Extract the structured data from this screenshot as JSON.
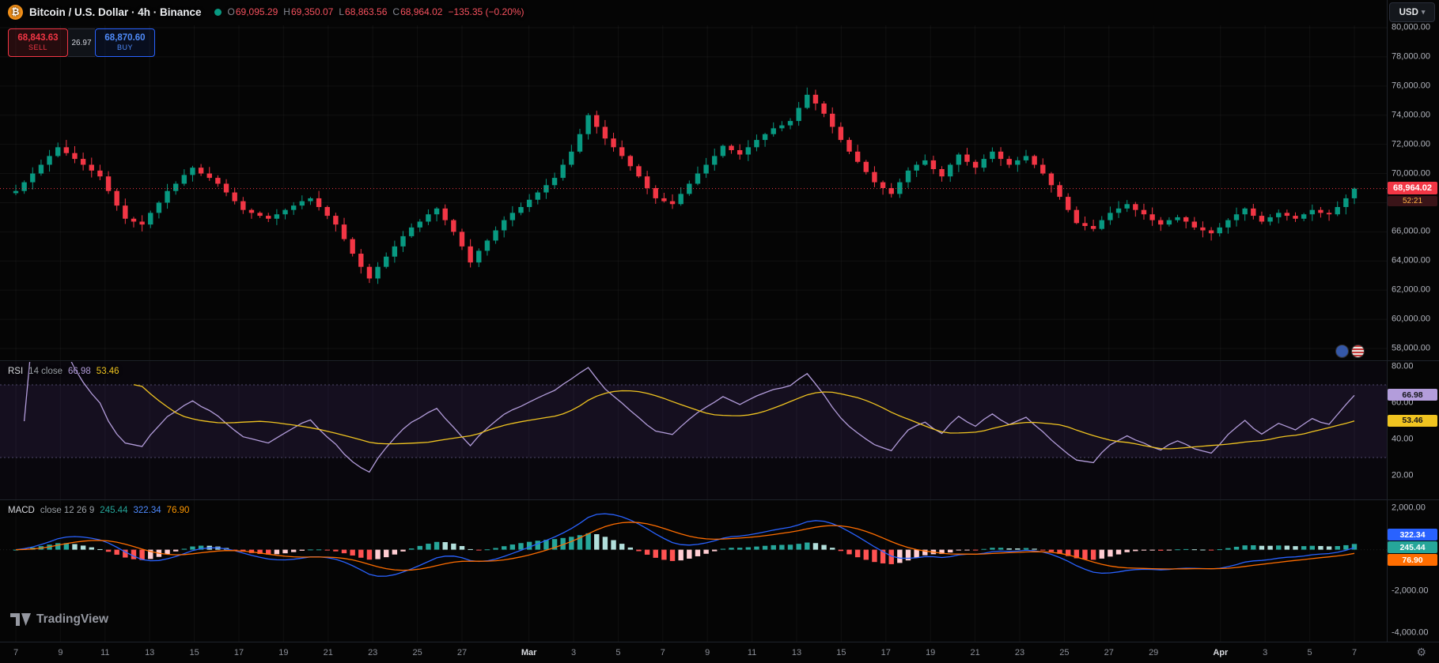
{
  "header": {
    "symbol_title": "Bitcoin / U.S. Dollar · 4h · Binance",
    "ohlc": {
      "o_label": "O",
      "o": "69,095.29",
      "h_label": "H",
      "h": "69,350.07",
      "l_label": "L",
      "l": "68,863.56",
      "c_label": "C",
      "c": "68,964.02",
      "change": "−135.35 (−0.20%)"
    },
    "currency_button": "USD"
  },
  "trade_panel": {
    "sell_price": "68,843.63",
    "sell_label": "SELL",
    "spread": "26.97",
    "buy_price": "68,870.60",
    "buy_label": "BUY"
  },
  "price_pane": {
    "last_price_label": "68,964.02",
    "countdown": "52:21",
    "ticks": [
      {
        "label": "80,000.00",
        "value": 80000
      },
      {
        "label": "78,000.00",
        "value": 78000
      },
      {
        "label": "76,000.00",
        "value": 76000
      },
      {
        "label": "74,000.00",
        "value": 74000
      },
      {
        "label": "72,000.00",
        "value": 72000
      },
      {
        "label": "70,000.00",
        "value": 70000
      },
      {
        "label": "68,000.00",
        "value": 68000
      },
      {
        "label": "66,000.00",
        "value": 66000
      },
      {
        "label": "64,000.00",
        "value": 64000
      },
      {
        "label": "62,000.00",
        "value": 62000
      },
      {
        "label": "60,000.00",
        "value": 60000
      },
      {
        "label": "58,000.00",
        "value": 58000
      }
    ]
  },
  "rsi_pane": {
    "title": "RSI",
    "params": "14 close",
    "value1": "66.98",
    "value2": "53.46",
    "badge1": "66.98",
    "badge2": "53.46",
    "ticks": [
      {
        "label": "80.00",
        "value": 80
      },
      {
        "label": "60.00",
        "value": 60
      },
      {
        "label": "40.00",
        "value": 40
      },
      {
        "label": "20.00",
        "value": 20
      }
    ]
  },
  "macd_pane": {
    "title": "MACD",
    "params": "close 12 26 9",
    "hist_value": "245.44",
    "macd_value": "322.34",
    "signal_value": "76.90",
    "badges": [
      {
        "text": "322.34"
      },
      {
        "text": "245.44"
      },
      {
        "text": "76.90"
      }
    ],
    "ticks": [
      {
        "label": "2,000.00",
        "value": 2000
      },
      {
        "label": "-2,000.00",
        "value": -2000
      },
      {
        "label": "-4,000.00",
        "value": -4000
      }
    ]
  },
  "time_axis": {
    "labels": [
      {
        "text": "7",
        "day": 0
      },
      {
        "text": "9",
        "day": 2
      },
      {
        "text": "11",
        "day": 4
      },
      {
        "text": "13",
        "day": 6
      },
      {
        "text": "15",
        "day": 8
      },
      {
        "text": "17",
        "day": 10
      },
      {
        "text": "19",
        "day": 12
      },
      {
        "text": "21",
        "day": 14
      },
      {
        "text": "23",
        "day": 16
      },
      {
        "text": "25",
        "day": 18
      },
      {
        "text": "27",
        "day": 20
      },
      {
        "text": "Mar",
        "day": 23,
        "month": true
      },
      {
        "text": "3",
        "day": 25
      },
      {
        "text": "5",
        "day": 27
      },
      {
        "text": "7",
        "day": 29
      },
      {
        "text": "9",
        "day": 31
      },
      {
        "text": "11",
        "day": 33
      },
      {
        "text": "13",
        "day": 35
      },
      {
        "text": "15",
        "day": 37
      },
      {
        "text": "17",
        "day": 39
      },
      {
        "text": "19",
        "day": 41
      },
      {
        "text": "21",
        "day": 43
      },
      {
        "text": "23",
        "day": 45
      },
      {
        "text": "25",
        "day": 47
      },
      {
        "text": "27",
        "day": 49
      },
      {
        "text": "29",
        "day": 51
      },
      {
        "text": "Apr",
        "day": 54,
        "month": true
      },
      {
        "text": "3",
        "day": 56
      },
      {
        "text": "5",
        "day": 58
      },
      {
        "text": "7",
        "day": 60
      }
    ]
  },
  "footer": {
    "brand": "TradingView"
  },
  "colors": {
    "up": "#089981",
    "down": "#f23645",
    "bitcoin_orange": "#f7931a",
    "accent_blue": "#2962ff",
    "rsi_line": "#b39ddb",
    "rsi_ma": "#f0c420",
    "macd_line": "#2962ff",
    "macd_signal": "#ff6d00",
    "hist_grow_above": "#26a69a",
    "hist_fall_above": "#b2dfdb",
    "hist_fall_below": "#ff5252",
    "hist_grow_below": "#ffcdd2"
  },
  "chart_data": {
    "type": "candlestick",
    "symbol": "Bitcoin / U.S. Dollar",
    "exchange": "Binance",
    "interval": "4h",
    "ohlc_current": {
      "open": 69095.29,
      "high": 69350.07,
      "low": 68863.56,
      "close": 68964.02,
      "change": -135.35,
      "change_pct": -0.2
    },
    "last_price": 68964.02,
    "price_axis": {
      "min": 58000,
      "max": 80000,
      "step": 2000
    },
    "x_range": [
      "Feb 7",
      "Apr 7"
    ],
    "closes": [
      68800,
      69400,
      70000,
      70600,
      71200,
      71800,
      71400,
      71000,
      70600,
      70200,
      69800,
      68800,
      67800,
      66900,
      66700,
      66500,
      67300,
      68000,
      68800,
      69300,
      69900,
      70400,
      70000,
      69700,
      69300,
      68700,
      68100,
      67500,
      67300,
      67100,
      66900,
      67200,
      67500,
      67800,
      68100,
      68300,
      67700,
      67100,
      66500,
      65500,
      64500,
      63600,
      62800,
      63600,
      64300,
      65000,
      65700,
      66300,
      66700,
      67200,
      67600,
      66800,
      66000,
      65000,
      63900,
      64700,
      65400,
      66100,
      66800,
      67300,
      67700,
      68200,
      68700,
      69200,
      69700,
      70600,
      71500,
      72700,
      74000,
      73200,
      72400,
      71800,
      71200,
      70500,
      69800,
      69000,
      68300,
      68100,
      67900,
      68600,
      69300,
      70000,
      70600,
      71200,
      71900,
      71600,
      71300,
      71800,
      72300,
      72700,
      73100,
      73300,
      73600,
      74500,
      75400,
      74800,
      74100,
      73200,
      72300,
      71500,
      70800,
      70100,
      69400,
      69000,
      68600,
      69400,
      70200,
      70600,
      70900,
      70300,
      69800,
      70600,
      71300,
      70800,
      70400,
      71000,
      71500,
      71000,
      70600,
      70900,
      71200,
      70600,
      70000,
      69200,
      68400,
      67500,
      66600,
      66400,
      66200,
      66800,
      67300,
      67600,
      67900,
      67500,
      67200,
      66800,
      66500,
      66800,
      67000,
      66700,
      66300,
      66100,
      65900,
      66300,
      66800,
      67200,
      67600,
      67100,
      66700,
      67000,
      67300,
      67100,
      66900,
      67200,
      67500,
      67300,
      67200,
      67700,
      68300,
      68964
    ],
    "indicators": {
      "rsi": {
        "period": 14,
        "source": "close",
        "last": 66.98,
        "ma_last": 53.46,
        "bands": [
          70,
          30
        ],
        "axis": [
          80,
          60,
          40,
          20
        ]
      },
      "macd": {
        "fast": 12,
        "slow": 26,
        "signal_period": 9,
        "macd_last": 322.34,
        "signal_last": 76.9,
        "histogram_last": 245.44,
        "axis": [
          2000,
          -2000,
          -4000
        ]
      }
    }
  }
}
